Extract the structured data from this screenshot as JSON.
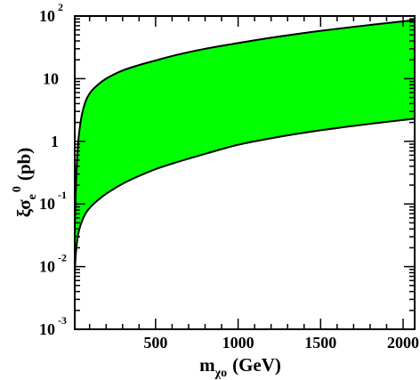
{
  "chart_data": {
    "type": "area",
    "y_scale": "log",
    "x_scale": "linear",
    "xlim": [
      10,
      2070
    ],
    "ylim": [
      0.001,
      100
    ],
    "grid": false,
    "legend": "none",
    "xlabel": {
      "main": "m",
      "subscript": "χo",
      "unit": "(GeV)"
    },
    "ylabel": {
      "prefix": "ξσ",
      "subscript": "e",
      "superscript": "0",
      "unit": "(pb)"
    },
    "x_ticks": [
      {
        "value": 500,
        "label": "500"
      },
      {
        "value": 1000,
        "label": "1000"
      },
      {
        "value": 1500,
        "label": "1500"
      },
      {
        "value": 2000,
        "label": "2000"
      }
    ],
    "y_ticks": [
      {
        "value": 100,
        "base": "10",
        "exp": "2"
      },
      {
        "value": 10,
        "base": "10",
        "exp": ""
      },
      {
        "value": 1,
        "base": "1",
        "exp": ""
      },
      {
        "value": 0.1,
        "base": "10",
        "exp": "-1"
      },
      {
        "value": 0.01,
        "base": "10",
        "exp": "-2"
      },
      {
        "value": 0.001,
        "base": "10",
        "exp": "-3"
      }
    ],
    "band": {
      "fill_color": "#00ff00",
      "edge_color": "#000000",
      "upper": {
        "x": [
          10,
          15,
          20,
          30,
          50,
          75,
          100,
          150,
          200,
          300,
          400,
          500,
          600,
          800,
          1000,
          1200,
          1500,
          1800,
          2070
        ],
        "y": [
          0.04,
          0.12,
          0.3,
          0.9,
          2.4,
          4.3,
          5.8,
          8.0,
          10.0,
          13.5,
          16.5,
          19.5,
          23,
          30,
          37,
          45,
          58,
          72,
          86
        ]
      },
      "lower": {
        "x": [
          10,
          15,
          20,
          30,
          50,
          75,
          100,
          150,
          200,
          300,
          400,
          500,
          600,
          800,
          1000,
          1200,
          1500,
          1800,
          2070
        ],
        "y": [
          0.0081,
          0.014,
          0.02,
          0.032,
          0.05,
          0.07,
          0.086,
          0.115,
          0.145,
          0.21,
          0.28,
          0.36,
          0.44,
          0.63,
          0.88,
          1.12,
          1.5,
          1.9,
          2.3
        ]
      }
    }
  }
}
